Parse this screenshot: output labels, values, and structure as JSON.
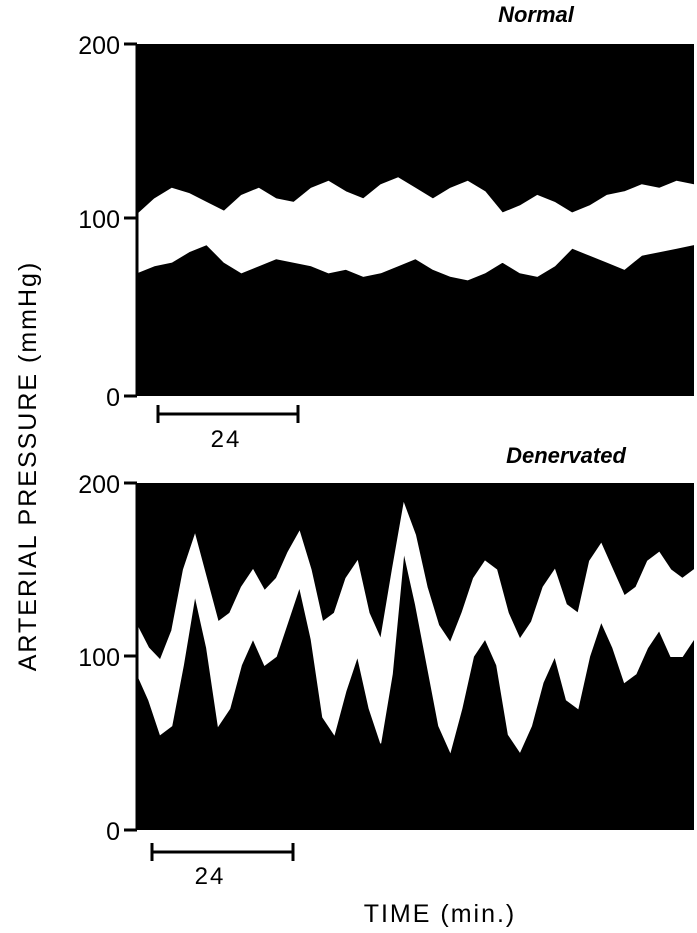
{
  "chart_data": [
    {
      "type": "line",
      "title": "Normal",
      "ylabel": "ARTERIAL PRESSURE (mmHg)",
      "xlabel": "TIME (min.)",
      "ylim": [
        0,
        200
      ],
      "yticks": [
        0,
        100,
        200
      ],
      "xlim": [
        0,
        96
      ],
      "scale_bar": {
        "length": 24,
        "label": "24",
        "unit": "min"
      },
      "band_color": "#ffffff",
      "background_color": "#000000",
      "series": [
        {
          "role": "systolic",
          "x": [
            0,
            3,
            6,
            9,
            12,
            15,
            18,
            21,
            24,
            27,
            30,
            33,
            36,
            39,
            42,
            45,
            48,
            51,
            54,
            57,
            60,
            63,
            66,
            69,
            72,
            75,
            78,
            81,
            84,
            87,
            90,
            93,
            96
          ],
          "y": [
            103,
            112,
            118,
            115,
            110,
            105,
            114,
            118,
            112,
            110,
            118,
            122,
            116,
            112,
            120,
            124,
            118,
            112,
            118,
            122,
            116,
            104,
            108,
            114,
            110,
            104,
            108,
            114,
            116,
            120,
            118,
            122,
            120
          ]
        },
        {
          "role": "diastolic",
          "x": [
            0,
            3,
            6,
            9,
            12,
            15,
            18,
            21,
            24,
            27,
            30,
            33,
            36,
            39,
            42,
            45,
            48,
            51,
            54,
            57,
            60,
            63,
            66,
            69,
            72,
            75,
            78,
            81,
            84,
            87,
            90,
            93,
            96
          ],
          "y": [
            70,
            74,
            76,
            82,
            86,
            76,
            70,
            74,
            78,
            76,
            74,
            70,
            72,
            68,
            70,
            74,
            78,
            72,
            68,
            66,
            70,
            76,
            70,
            68,
            74,
            84,
            80,
            76,
            72,
            80,
            82,
            84,
            86
          ]
        }
      ]
    },
    {
      "type": "line",
      "title": "Denervated",
      "ylabel": "ARTERIAL PRESSURE (mmHg)",
      "xlabel": "TIME (min.)",
      "ylim": [
        0,
        200
      ],
      "yticks": [
        0,
        100,
        200
      ],
      "xlim": [
        0,
        96
      ],
      "scale_bar": {
        "length": 24,
        "label": "24",
        "unit": "min"
      },
      "band_color": "#ffffff",
      "background_color": "#000000",
      "series": [
        {
          "role": "upper",
          "x": [
            0,
            2,
            4,
            6,
            8,
            10,
            12,
            14,
            16,
            18,
            20,
            22,
            24,
            26,
            28,
            30,
            32,
            34,
            36,
            38,
            40,
            42,
            44,
            46,
            48,
            50,
            52,
            54,
            56,
            58,
            60,
            62,
            64,
            66,
            68,
            70,
            72,
            74,
            76,
            78,
            80,
            82,
            84,
            86,
            88,
            90,
            92,
            94,
            96
          ],
          "y": [
            118,
            105,
            98,
            115,
            150,
            170,
            145,
            120,
            125,
            140,
            150,
            138,
            145,
            160,
            172,
            150,
            120,
            125,
            145,
            155,
            125,
            110,
            150,
            188,
            170,
            140,
            118,
            108,
            125,
            145,
            155,
            150,
            125,
            110,
            120,
            140,
            150,
            130,
            125,
            155,
            165,
            150,
            135,
            140,
            155,
            160,
            150,
            145,
            150
          ]
        },
        {
          "role": "lower",
          "x": [
            0,
            2,
            4,
            6,
            8,
            10,
            12,
            14,
            16,
            18,
            20,
            22,
            24,
            26,
            28,
            30,
            32,
            34,
            36,
            38,
            40,
            42,
            44,
            46,
            48,
            50,
            52,
            54,
            56,
            58,
            60,
            62,
            64,
            66,
            68,
            70,
            72,
            74,
            76,
            78,
            80,
            82,
            84,
            86,
            88,
            90,
            92,
            94,
            96
          ],
          "y": [
            90,
            75,
            55,
            60,
            95,
            135,
            105,
            60,
            70,
            95,
            110,
            95,
            100,
            120,
            140,
            110,
            65,
            55,
            80,
            100,
            70,
            50,
            90,
            160,
            130,
            95,
            60,
            45,
            70,
            100,
            110,
            95,
            55,
            45,
            60,
            85,
            100,
            75,
            70,
            100,
            120,
            105,
            85,
            90,
            105,
            115,
            100,
            100,
            110
          ]
        }
      ]
    }
  ]
}
